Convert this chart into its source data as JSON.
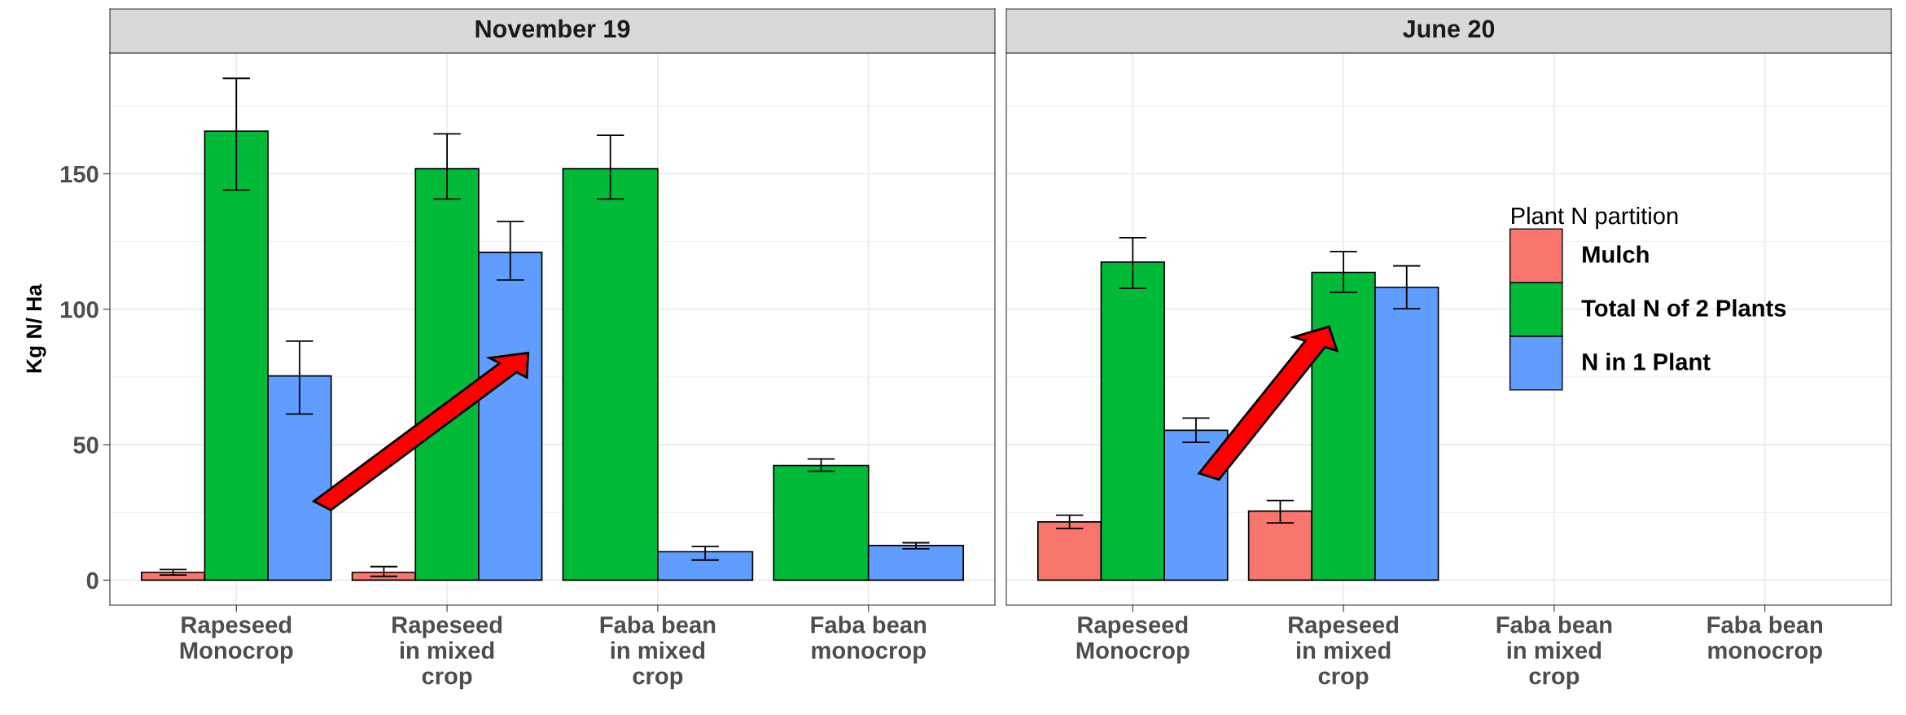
{
  "chart_data": [
    {
      "type": "bar",
      "title": "November 19",
      "ylabel": "Kg N/ Ha",
      "categories": [
        "Rapeseed\nMonocrop",
        "Rapeseed\nin mixed\ncrop",
        "Faba bean\nin mixed\ncrop",
        "Faba bean\nmonocrop"
      ],
      "ylim": [
        -9.2,
        194.6
      ],
      "yticks": [
        0,
        50,
        100,
        150
      ],
      "grid": true,
      "tick_labels": "xy",
      "series": [
        {
          "color": "#f8766d",
          "values": [
            2.9,
            2.9,
            null,
            null
          ],
          "errors": [
            [
              1.9,
              3.9
            ],
            [
              1.4,
              5.0
            ],
            null,
            null
          ]
        },
        {
          "color": "#00ba38",
          "values": [
            165.7,
            151.9,
            151.9,
            42.3
          ],
          "errors": [
            [
              144.0,
              185.2
            ],
            [
              140.7,
              164.7
            ],
            [
              140.7,
              164.2
            ],
            [
              40.2,
              44.7
            ]
          ]
        },
        {
          "color": "#619cff",
          "values": [
            75.4,
            121.0,
            10.5,
            12.8
          ],
          "errors": [
            [
              61.3,
              88.2
            ],
            [
              110.8,
              132.4
            ],
            [
              7.4,
              12.4
            ],
            [
              11.6,
              13.8
            ]
          ]
        }
      ]
    },
    {
      "type": "bar",
      "title": "June 20",
      "categories": [
        "Rapeseed\nMonocrop",
        "Rapeseed\nin mixed\ncrop",
        "Faba bean\nin mixed\ncrop",
        "Faba bean\nmonocrop"
      ],
      "ylim": [
        -9.2,
        194.6
      ],
      "yticks": [
        0,
        50,
        100,
        150
      ],
      "grid": true,
      "tick_labels": "x",
      "legend": "right",
      "legend_title": "Plant N partition",
      "series": [
        {
          "name": "Mulch",
          "color": "#f8766d",
          "values": [
            21.5,
            25.5,
            null,
            null
          ],
          "errors": [
            [
              19.1,
              24.0
            ],
            [
              21.1,
              29.4
            ],
            null,
            null
          ]
        },
        {
          "name": "Total N of 2 Plants",
          "color": "#00ba38",
          "values": [
            117.4,
            113.6,
            null,
            null
          ],
          "errors": [
            [
              107.7,
              126.4
            ],
            [
              106.2,
              121.3
            ],
            null,
            null
          ]
        },
        {
          "name": "N in 1 Plant",
          "color": "#619cff",
          "values": [
            55.3,
            108.1,
            null,
            null
          ],
          "errors": [
            [
              50.9,
              59.8
            ],
            [
              100.2,
              116.0
            ],
            null,
            null
          ]
        }
      ]
    }
  ]
}
